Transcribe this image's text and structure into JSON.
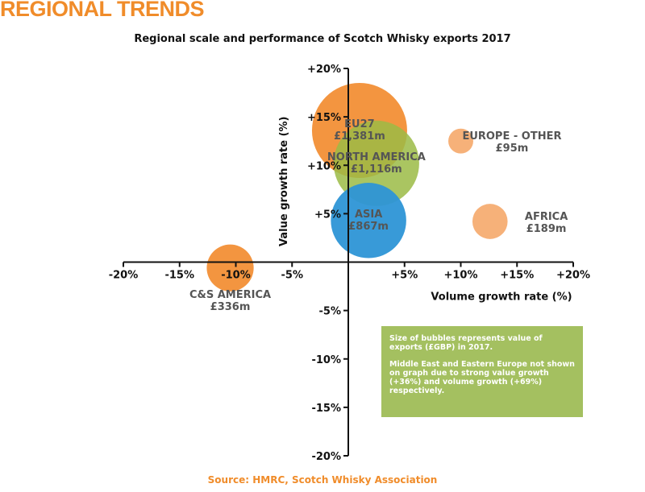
{
  "page": {
    "title": "REGIONAL TRENDS",
    "source": "Source: HMRC, Scotch Whisky Association"
  },
  "note": {
    "paragraphs": [
      "Size of bubbles represents value of exports (£GBP) in 2017.",
      "Middle East and Eastern Europe not shown on graph due to strong value growth (+36%) and volume growth (+69%) respectively."
    ],
    "background": "#a4c060"
  },
  "colors": {
    "accent": "#f08c2a",
    "orange_bubble": "#f28a2b",
    "light_orange_bubble": "#f5a96a",
    "green_bubble": "#9bbb45",
    "blue_bubble": "#2d95d6"
  },
  "chart_data": {
    "type": "scatter",
    "subtype": "bubble",
    "title": "Regional scale and performance of Scotch Whisky exports 2017",
    "xlabel": "Volume growth rate (%)",
    "ylabel": "Value growth rate (%)",
    "xlim": [
      -20,
      20
    ],
    "ylim": [
      -20,
      20
    ],
    "x_ticks": [
      {
        "value": -20,
        "label": "-20%"
      },
      {
        "value": -15,
        "label": "-15%"
      },
      {
        "value": -10,
        "label": "-10%"
      },
      {
        "value": -5,
        "label": "-5%"
      },
      {
        "value": 5,
        "label": "+5%"
      },
      {
        "value": 10,
        "label": "+10%"
      },
      {
        "value": 15,
        "label": "+15%"
      },
      {
        "value": 20,
        "label": "+20%"
      }
    ],
    "y_ticks": [
      {
        "value": 20,
        "label": "+20%"
      },
      {
        "value": 15,
        "label": "+15%"
      },
      {
        "value": 10,
        "label": "+10%"
      },
      {
        "value": 5,
        "label": "+5%"
      },
      {
        "value": -5,
        "label": "-5%"
      },
      {
        "value": -10,
        "label": "-10%"
      },
      {
        "value": -15,
        "label": "-15%"
      },
      {
        "value": -20,
        "label": "-20%"
      }
    ],
    "grid": false,
    "bubble_size": "Value of exports (£GBP) in 2017",
    "points": [
      {
        "name": "EU27",
        "value_label": "£1,381m",
        "export_value_m": 1381,
        "x": 1.0,
        "y": 13.6,
        "color": "#f28a2b",
        "opacity": 0.9
      },
      {
        "name": "NORTH AMERICA",
        "value_label": "£1,116m",
        "export_value_m": 1116,
        "x": 2.5,
        "y": 10.2,
        "color": "#9bbb45",
        "opacity": 0.85
      },
      {
        "name": "ASIA",
        "value_label": "£867m",
        "export_value_m": 867,
        "x": 1.8,
        "y": 4.3,
        "color": "#2d95d6",
        "opacity": 0.95
      },
      {
        "name": "EUROPE - OTHER",
        "value_label": "£95m",
        "export_value_m": 95,
        "x": 10.0,
        "y": 12.5,
        "color": "#f5a96a",
        "opacity": 0.9
      },
      {
        "name": "AFRICA",
        "value_label": "£189m",
        "export_value_m": 189,
        "x": 12.6,
        "y": 4.2,
        "color": "#f5a96a",
        "opacity": 0.9
      },
      {
        "name": "C&S AMERICA",
        "value_label": "£336m",
        "export_value_m": 336,
        "x": -10.5,
        "y": -0.6,
        "color": "#f28a2b",
        "opacity": 0.9
      }
    ]
  }
}
